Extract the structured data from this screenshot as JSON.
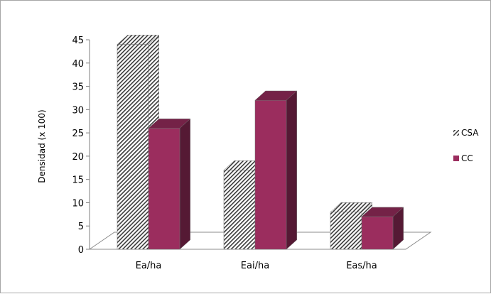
{
  "chart_data": {
    "type": "bar",
    "style": "3d-clustered-column",
    "categories": [
      "Ea/ha",
      "Eai/ha",
      "Eas/ha"
    ],
    "series": [
      {
        "name": "CSA",
        "values": [
          44,
          17,
          8
        ],
        "fill": "hatched",
        "color": "#555555"
      },
      {
        "name": "CC",
        "values": [
          26,
          32,
          7
        ],
        "fill": "solid",
        "color": "#9b2d5e"
      }
    ],
    "xlabel": "",
    "ylabel": "Densidad (x 100)",
    "ylim": [
      0,
      45
    ],
    "yticks": [
      0,
      5,
      10,
      15,
      20,
      25,
      30,
      35,
      40,
      45
    ],
    "grid": false,
    "legend": "right"
  }
}
